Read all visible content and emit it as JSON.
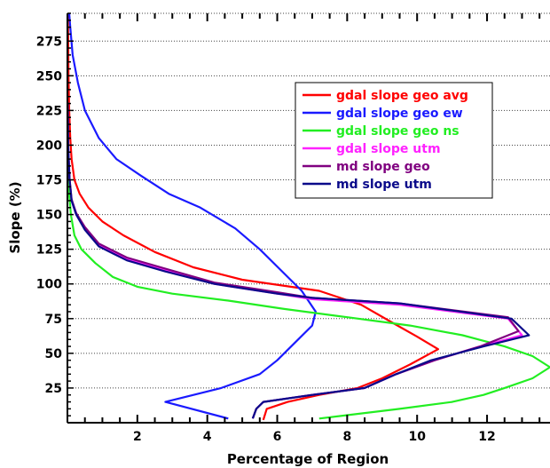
{
  "chart_data": {
    "type": "line",
    "title": "",
    "xlabel": "Percentage of Region",
    "ylabel": "Slope (%)",
    "xlim": [
      0,
      13.8
    ],
    "ylim": [
      0,
      295
    ],
    "x_ticks": [
      2,
      4,
      6,
      8,
      10,
      12
    ],
    "y_ticks": [
      25,
      50,
      75,
      100,
      125,
      150,
      175,
      200,
      225,
      250,
      275
    ],
    "grid": "horizontal dotted",
    "legend_position": "upper-right",
    "series": [
      {
        "name": "gdal slope geo avg",
        "color": "#ff0000",
        "points": [
          [
            5.6,
            2
          ],
          [
            5.7,
            10
          ],
          [
            6.3,
            15
          ],
          [
            7.2,
            20
          ],
          [
            8.3,
            25
          ],
          [
            9.0,
            32
          ],
          [
            9.8,
            42
          ],
          [
            10.6,
            53
          ],
          [
            10.0,
            62
          ],
          [
            9.3,
            72
          ],
          [
            8.4,
            85
          ],
          [
            7.2,
            95
          ],
          [
            5.0,
            103
          ],
          [
            3.6,
            112
          ],
          [
            2.5,
            123
          ],
          [
            1.6,
            135
          ],
          [
            1.0,
            145
          ],
          [
            0.6,
            155
          ],
          [
            0.35,
            165
          ],
          [
            0.2,
            175
          ],
          [
            0.12,
            190
          ],
          [
            0.08,
            205
          ],
          [
            0.05,
            225
          ],
          [
            0.03,
            250
          ],
          [
            0.02,
            280
          ],
          [
            0.01,
            295
          ]
        ]
      },
      {
        "name": "gdal slope geo ew",
        "color": "#1a1aff",
        "points": [
          [
            4.6,
            3
          ],
          [
            2.8,
            15
          ],
          [
            4.4,
            25
          ],
          [
            5.5,
            35
          ],
          [
            6.0,
            45
          ],
          [
            6.6,
            60
          ],
          [
            7.0,
            70
          ],
          [
            7.1,
            80
          ],
          [
            6.7,
            95
          ],
          [
            6.1,
            110
          ],
          [
            5.5,
            125
          ],
          [
            4.8,
            140
          ],
          [
            3.8,
            155
          ],
          [
            2.9,
            165
          ],
          [
            2.1,
            178
          ],
          [
            1.4,
            190
          ],
          [
            0.9,
            205
          ],
          [
            0.5,
            225
          ],
          [
            0.3,
            245
          ],
          [
            0.15,
            265
          ],
          [
            0.08,
            285
          ],
          [
            0.05,
            295
          ]
        ]
      },
      {
        "name": "gdal slope geo ns",
        "color": "#22ee22",
        "points": [
          [
            7.2,
            3
          ],
          [
            9.5,
            10
          ],
          [
            11.0,
            15
          ],
          [
            11.9,
            20
          ],
          [
            12.5,
            25
          ],
          [
            13.3,
            32
          ],
          [
            13.8,
            40
          ],
          [
            13.3,
            48
          ],
          [
            12.5,
            55
          ],
          [
            11.3,
            63
          ],
          [
            9.8,
            70
          ],
          [
            8.0,
            76
          ],
          [
            6.2,
            82
          ],
          [
            4.6,
            88
          ],
          [
            3.0,
            93
          ],
          [
            2.0,
            98
          ],
          [
            1.3,
            105
          ],
          [
            0.8,
            115
          ],
          [
            0.4,
            125
          ],
          [
            0.2,
            135
          ],
          [
            0.1,
            150
          ],
          [
            0.05,
            165
          ],
          [
            0.02,
            185
          ],
          [
            0.01,
            210
          ]
        ]
      },
      {
        "name": "gdal slope utm",
        "color": "#ff22ff",
        "points": [
          [
            5.3,
            3
          ],
          [
            5.4,
            10
          ],
          [
            5.6,
            15
          ],
          [
            7.0,
            20
          ],
          [
            8.5,
            25
          ],
          [
            9.4,
            35
          ],
          [
            10.5,
            45
          ],
          [
            11.8,
            55
          ],
          [
            13.0,
            63
          ],
          [
            12.6,
            75
          ],
          [
            9.5,
            85
          ],
          [
            7.0,
            89
          ],
          [
            6.0,
            93
          ],
          [
            4.2,
            100
          ],
          [
            2.8,
            110
          ],
          [
            1.7,
            118
          ],
          [
            0.9,
            128
          ],
          [
            0.5,
            140
          ],
          [
            0.25,
            150
          ],
          [
            0.12,
            160
          ],
          [
            0.06,
            175
          ],
          [
            0.02,
            200
          ],
          [
            0.01,
            230
          ]
        ]
      },
      {
        "name": "md slope geo",
        "color": "#800080",
        "points": [
          [
            5.3,
            3
          ],
          [
            5.4,
            10
          ],
          [
            5.6,
            15
          ],
          [
            7.0,
            20
          ],
          [
            8.5,
            25
          ],
          [
            9.4,
            35
          ],
          [
            10.5,
            45
          ],
          [
            11.8,
            55
          ],
          [
            12.9,
            66
          ],
          [
            12.6,
            76
          ],
          [
            9.5,
            86
          ],
          [
            7.0,
            90
          ],
          [
            6.0,
            94
          ],
          [
            4.2,
            101
          ],
          [
            2.8,
            111
          ],
          [
            1.7,
            119
          ],
          [
            0.9,
            129
          ],
          [
            0.5,
            141
          ],
          [
            0.25,
            151
          ],
          [
            0.12,
            161
          ],
          [
            0.06,
            176
          ],
          [
            0.02,
            201
          ],
          [
            0.01,
            231
          ]
        ]
      },
      {
        "name": "md slope utm",
        "color": "#0a0a8a",
        "points": [
          [
            5.3,
            3
          ],
          [
            5.4,
            10
          ],
          [
            5.6,
            15
          ],
          [
            7.0,
            20
          ],
          [
            8.5,
            25
          ],
          [
            9.4,
            35
          ],
          [
            10.4,
            45
          ],
          [
            11.9,
            55
          ],
          [
            13.2,
            63
          ],
          [
            12.7,
            75
          ],
          [
            9.5,
            86
          ],
          [
            7.0,
            90
          ],
          [
            6.0,
            93
          ],
          [
            4.2,
            100
          ],
          [
            2.8,
            109
          ],
          [
            1.7,
            117
          ],
          [
            0.9,
            127
          ],
          [
            0.5,
            139
          ],
          [
            0.25,
            150
          ],
          [
            0.12,
            160
          ],
          [
            0.06,
            175
          ],
          [
            0.02,
            200
          ],
          [
            0.01,
            230
          ]
        ]
      }
    ]
  }
}
